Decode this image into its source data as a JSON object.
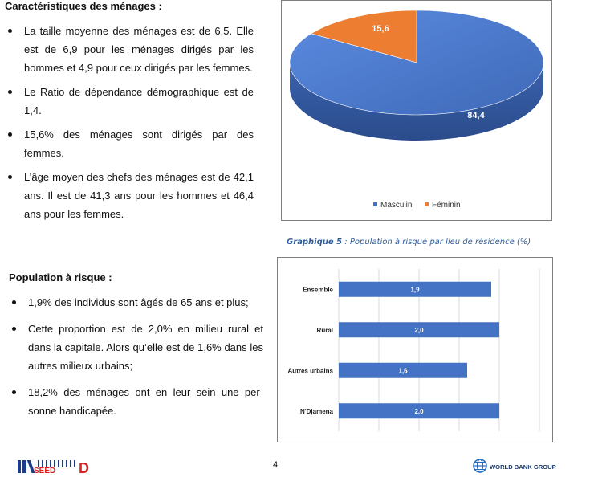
{
  "section1": {
    "heading": "Caractéristiques des ménages :",
    "bullets": [
      "La taille moyenne des ménages est de 6,5. Elle est de 6,9 pour les ménages dirigés par les hommes et 4,9 pour ceux dirigés par les femmes.",
      "Le Ratio de dépendance démographique est de 1,4.",
      "15,6% des ménages sont dirigés par des femmes.",
      "L’âge moyen des chefs des ménages est de 42,1 ans. Il est de 41,3 ans pour les hommes et 46,4 ans pour les femmes."
    ]
  },
  "section2": {
    "heading": "Population à risque :",
    "bullets": [
      "1,9% des individus sont âgés de 65 ans et plus;",
      "Cette proportion est de 2,0% en milieu rural et dans la capitale. Alors qu’elle est de 1,6% dans les autres milieux urbains;",
      "18,2% des ménages ont en leur sein une per-sonne handicapée."
    ]
  },
  "chart_data": [
    {
      "type": "pie",
      "style": "3d",
      "categories": [
        "Masculin",
        "Féminin"
      ],
      "values": [
        84.4,
        15.6
      ],
      "labels": [
        "84,4",
        "15,6"
      ],
      "colors": [
        "#4472c4",
        "#ed7d31"
      ],
      "legend_position": "bottom"
    },
    {
      "type": "bar",
      "orientation": "horizontal",
      "title_prefix": "Graphique 5",
      "title": " : Population à risqué par  lieu de résidence (%)",
      "categories": [
        "Ensemble",
        "Rural",
        "Autres urbains",
        "N'Djamena"
      ],
      "values": [
        1.9,
        2.0,
        1.6,
        2.0
      ],
      "labels": [
        "1,9",
        "2,0",
        "1,6",
        "2,0"
      ],
      "color": "#4472c4",
      "xlim": [
        0,
        2.5
      ],
      "grid": true
    }
  ],
  "footer": {
    "logo_left": "INSEED",
    "page_number": "4",
    "logo_right": "WORLD BANK GROUP"
  }
}
